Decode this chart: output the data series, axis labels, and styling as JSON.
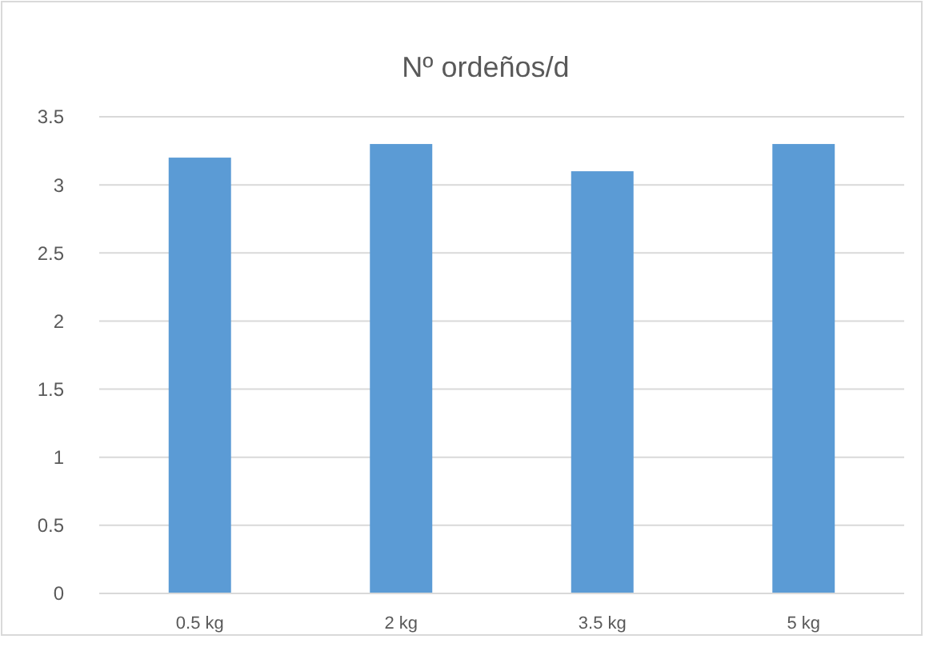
{
  "chart_data": {
    "type": "bar",
    "title": "Nº ordeños/d",
    "categories": [
      "0.5 kg",
      "2 kg",
      "3.5 kg",
      "5 kg"
    ],
    "values": [
      3.2,
      3.3,
      3.1,
      3.3
    ],
    "color": "#5b9bd5",
    "ylim": [
      0,
      3.5
    ],
    "yticks": [
      0,
      0.5,
      1,
      1.5,
      2,
      2.5,
      3,
      3.5
    ],
    "grid": "y"
  }
}
